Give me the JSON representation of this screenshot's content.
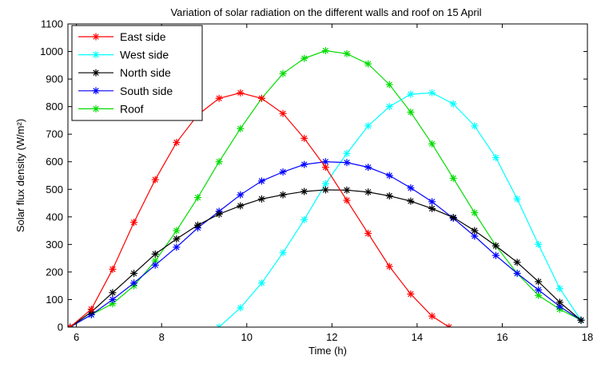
{
  "chart_data": {
    "type": "line",
    "title": "Variation of solar radiation on the different walls and roof on 15 April",
    "xlabel": "Time (h)",
    "ylabel": "Solar flux density (W/m²)",
    "xlim": [
      5.8,
      18
    ],
    "ylim": [
      0,
      1100
    ],
    "xticks": [
      6,
      8,
      10,
      12,
      14,
      16,
      18
    ],
    "yticks": [
      0,
      100,
      200,
      300,
      400,
      500,
      600,
      700,
      800,
      900,
      1000,
      1100
    ],
    "grid": false,
    "legend_position": "top-left",
    "series": [
      {
        "name": "East side",
        "color": "#ff0000",
        "x": [
          5.85,
          6.35,
          6.85,
          7.35,
          7.85,
          8.35,
          8.85,
          9.35,
          9.85,
          10.35,
          10.85,
          11.35,
          11.85,
          12.35,
          12.85,
          13.35,
          13.85,
          14.35,
          14.75
        ],
        "y": [
          0,
          65,
          210,
          380,
          535,
          670,
          770,
          830,
          850,
          830,
          775,
          685,
          580,
          460,
          340,
          220,
          120,
          40,
          0
        ]
      },
      {
        "name": "West side",
        "color": "#00ffff",
        "x": [
          9.35,
          9.85,
          10.35,
          10.85,
          11.35,
          11.85,
          12.35,
          12.85,
          13.35,
          13.85,
          14.35,
          14.85,
          15.35,
          15.85,
          16.35,
          16.85,
          17.35,
          17.85
        ],
        "y": [
          0,
          70,
          160,
          270,
          390,
          520,
          630,
          730,
          800,
          845,
          850,
          810,
          730,
          615,
          465,
          300,
          140,
          25
        ]
      },
      {
        "name": "North side",
        "color": "#000000",
        "x": [
          5.85,
          6.35,
          6.85,
          7.35,
          7.85,
          8.35,
          8.85,
          9.35,
          9.85,
          10.35,
          10.85,
          11.35,
          11.85,
          12.35,
          12.85,
          13.35,
          13.85,
          14.35,
          14.85,
          15.35,
          15.85,
          16.35,
          16.85,
          17.35,
          17.85
        ],
        "y": [
          0,
          55,
          125,
          195,
          265,
          320,
          370,
          410,
          440,
          465,
          480,
          492,
          498,
          497,
          490,
          476,
          457,
          430,
          398,
          350,
          295,
          235,
          165,
          90,
          25
        ]
      },
      {
        "name": "South side",
        "color": "#0000ff",
        "x": [
          5.85,
          6.35,
          6.85,
          7.35,
          7.85,
          8.35,
          8.85,
          9.35,
          9.85,
          10.35,
          10.85,
          11.35,
          11.85,
          12.35,
          12.85,
          13.35,
          13.85,
          14.35,
          14.85,
          15.35,
          15.85,
          16.35,
          16.85,
          17.35,
          17.85
        ],
        "y": [
          0,
          45,
          100,
          160,
          225,
          290,
          360,
          420,
          480,
          530,
          563,
          590,
          600,
          597,
          580,
          550,
          505,
          455,
          395,
          330,
          260,
          195,
          135,
          75,
          25
        ]
      },
      {
        "name": "Roof",
        "color": "#00dd00",
        "x": [
          5.85,
          6.35,
          6.85,
          7.35,
          7.85,
          8.35,
          8.85,
          9.35,
          9.85,
          10.35,
          10.85,
          11.35,
          11.85,
          12.35,
          12.85,
          13.35,
          13.85,
          14.35,
          14.85,
          15.35,
          15.85,
          16.35,
          16.85,
          17.35,
          17.85
        ],
        "y": [
          0,
          45,
          85,
          150,
          240,
          350,
          470,
          600,
          720,
          830,
          920,
          975,
          1003,
          992,
          955,
          880,
          780,
          665,
          540,
          415,
          295,
          195,
          115,
          65,
          25
        ]
      }
    ]
  }
}
